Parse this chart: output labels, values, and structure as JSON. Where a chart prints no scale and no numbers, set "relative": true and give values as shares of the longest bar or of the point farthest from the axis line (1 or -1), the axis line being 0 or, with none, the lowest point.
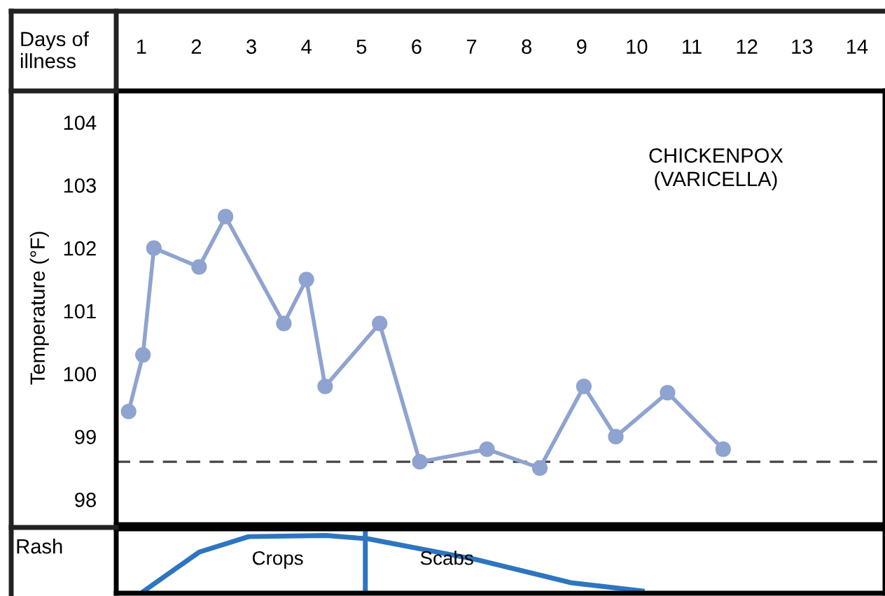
{
  "chart_data": [
    {
      "type": "line",
      "xlabel": "Days of\nillness",
      "ylabel": "Temperature (°F)",
      "annotations": [
        "CHICKENPOX\n(VARICELLA)"
      ],
      "xlim": [
        0.545,
        14.51
      ],
      "xticks": [
        1,
        2,
        3,
        4,
        5,
        6,
        7,
        8,
        9,
        10,
        11,
        12,
        13,
        14
      ],
      "ylim": [
        97.6,
        104.5
      ],
      "yticks": [
        98,
        99,
        100,
        101,
        102,
        103,
        104
      ],
      "series": [
        {
          "color": "#8fa3d0",
          "x": [
            0.77,
            1.03,
            1.23,
            2.05,
            2.53,
            3.59,
            4.0,
            4.34,
            5.33,
            6.06,
            7.28,
            8.24,
            9.04,
            9.62,
            10.56,
            11.57
          ],
          "values": [
            99.4,
            100.3,
            102.0,
            101.7,
            102.5,
            100.8,
            101.5,
            99.8,
            100.8,
            98.6,
            98.8,
            98.5,
            99.8,
            99.0,
            99.7,
            98.8
          ]
        }
      ],
      "ref_lines": [
        {
          "axis": "y",
          "value": 98.6,
          "color": "#444444",
          "line_style": "dashed"
        }
      ],
      "marker": "circle",
      "line_style": "solid",
      "grid": false,
      "legend": false
    },
    {
      "type": "line",
      "ylabel": "Rash",
      "relative": true,
      "tick_labels": false,
      "annotations": [
        "Crops",
        "Scabs"
      ],
      "xlim": [
        0.545,
        14.51
      ],
      "xticks": [
        1,
        2,
        3,
        4,
        5,
        6,
        7,
        8,
        9,
        10,
        11,
        12,
        13,
        14
      ],
      "series": [
        {
          "color": "#2e75c0",
          "x": [
            1.05,
            2.05,
            2.95,
            4.36,
            5.12,
            7.07,
            8.8,
            10.1
          ],
          "values": [
            0,
            0.7,
            0.98,
            1,
            0.94,
            0.57,
            0.15,
            0
          ]
        }
      ],
      "ref_lines": [
        {
          "axis": "x",
          "value": 5.07,
          "color": "#2e75c0",
          "line_style": "solid"
        }
      ],
      "marker": "none",
      "line_style": "solid",
      "grid": false,
      "legend": false
    }
  ]
}
